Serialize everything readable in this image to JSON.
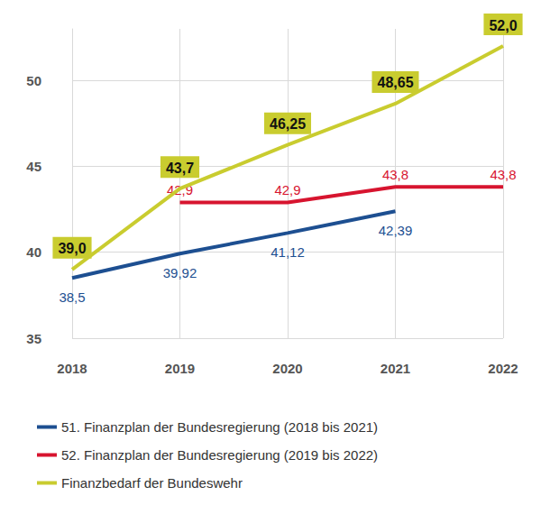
{
  "chart_data": {
    "type": "line",
    "categories": [
      "2018",
      "2019",
      "2020",
      "2021",
      "2022"
    ],
    "series": [
      {
        "name": "51. Finanzplan der Bundesregierung (2018 bis 2021)",
        "color": "#1d4f91",
        "values": [
          38.5,
          39.92,
          41.12,
          42.39,
          null
        ],
        "value_labels": [
          "38,5",
          "39,92",
          "41,12",
          "42,39",
          null
        ]
      },
      {
        "name": "52. Finanzplan der Bundesregierung (2019 bis 2022)",
        "color": "#d7142f",
        "values": [
          null,
          42.9,
          42.9,
          43.8,
          43.8
        ],
        "value_labels": [
          null,
          "42,9",
          "42,9",
          "43,8",
          "43,8"
        ]
      },
      {
        "name": "Finanzbedarf der Bundeswehr",
        "color": "#c9cc2f",
        "values": [
          39.0,
          43.7,
          46.25,
          48.65,
          52.0
        ],
        "value_labels": [
          "39,0",
          "43,7",
          "46,25",
          "48,65",
          "52,0"
        ]
      }
    ],
    "ylim": [
      35,
      53
    ],
    "yticks": [
      35,
      40,
      45,
      50
    ],
    "grid": true,
    "legend": "bottom left",
    "data_labels": true
  }
}
